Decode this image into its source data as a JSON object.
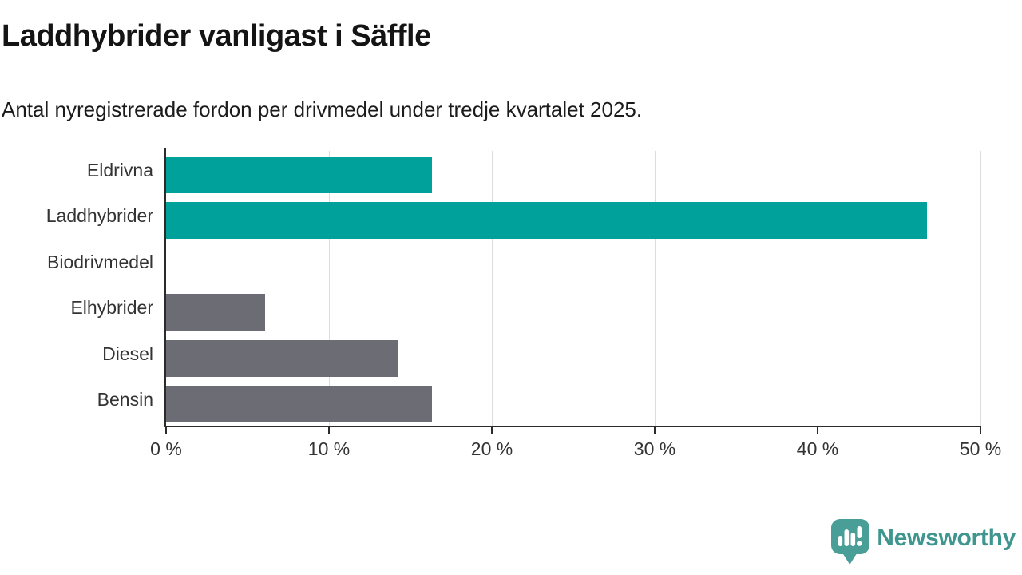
{
  "title": "Laddhybrider vanligast i Säffle",
  "subtitle": "Antal nyregistrerade fordon per drivmedel under tredje kvartalet 2025.",
  "colors": {
    "teal": "#00a09b",
    "gray": "#6c6c74",
    "axis": "#2b2b2b",
    "gridline": "#dcdcdc",
    "text": "#333333",
    "logo_teal": "#4a9e98"
  },
  "chart_data": {
    "type": "bar",
    "orientation": "horizontal",
    "title": "Laddhybrider vanligast i Säffle",
    "subtitle": "Antal nyregistrerade fordon per drivmedel under tredje kvartalet 2025.",
    "categories": [
      "Eldrivna",
      "Laddhybrider",
      "Biodrivmedel",
      "Elhybrider",
      "Diesel",
      "Bensin"
    ],
    "values": [
      16.3,
      46.7,
      0,
      6.1,
      14.2,
      16.3
    ],
    "unit": "%",
    "bar_colors": [
      "#00a09b",
      "#00a09b",
      "#00a09b",
      "#6c6c74",
      "#6c6c74",
      "#6c6c74"
    ],
    "xlim": [
      0,
      50
    ],
    "x_tick_values": [
      0,
      10,
      20,
      30,
      40,
      50
    ],
    "x_tick_labels": [
      "0 %",
      "10 %",
      "20 %",
      "30 %",
      "40 %",
      "50 %"
    ],
    "grid": true,
    "legend": false
  },
  "logo": {
    "text": "Newsworthy"
  }
}
